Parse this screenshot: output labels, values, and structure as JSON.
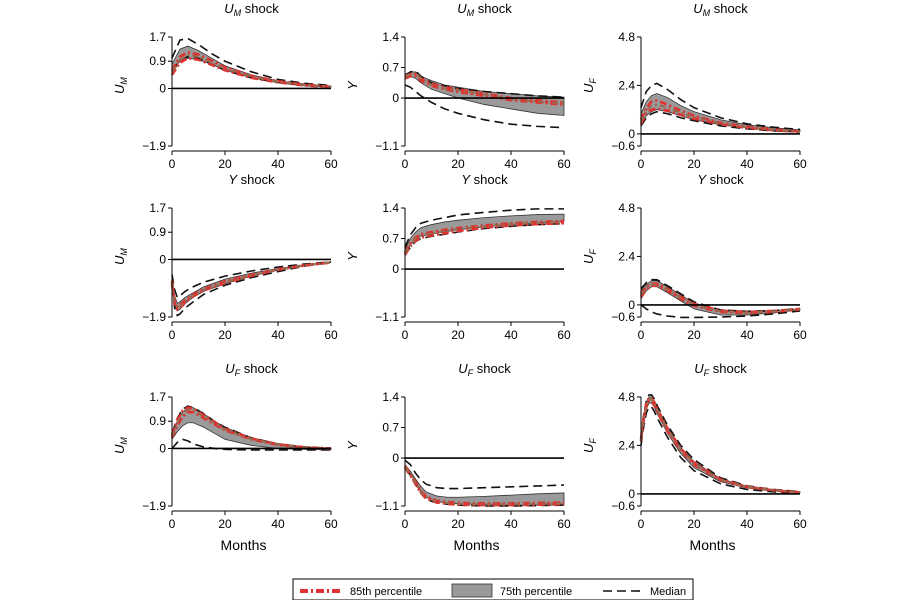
{
  "chart_data": {
    "type": "line",
    "xlabel": "Months",
    "x_ticks": [
      0,
      20,
      40,
      60
    ],
    "rows": [
      {
        "shock": "U_M",
        "title": "shock"
      },
      {
        "shock": "Y",
        "title": "shock"
      },
      {
        "shock": "U_F",
        "title": "shock"
      }
    ],
    "cols": [
      {
        "var": "U_M",
        "ylim": [
          -1.9,
          1.7
        ],
        "yticks": [
          "1.7",
          "0.9",
          "0",
          "−1.9"
        ],
        "ytick_vals": [
          1.7,
          0.9,
          0,
          -1.9
        ]
      },
      {
        "var": "Y",
        "ylim": [
          -1.1,
          1.4
        ],
        "yticks": [
          "1.4",
          "0.7",
          "0",
          "−1.1"
        ],
        "ytick_vals": [
          1.4,
          0.7,
          0,
          -1.1
        ]
      },
      {
        "var": "U_F",
        "ylim": [
          -0.6,
          4.8
        ],
        "yticks": [
          "4.8",
          "2.4",
          "0",
          "−0.6"
        ],
        "ytick_vals": [
          4.8,
          2.4,
          0,
          -0.6
        ]
      }
    ],
    "legend": {
      "items": [
        "85th percentile",
        "75th percentile",
        "Median"
      ],
      "placement": "bottom-center"
    },
    "series_note": "Each panel shows a shaded 75th-percentile band, red dashed 85th-percentile bounds, a grey dash-dot central line and black dashed median bounds.",
    "panels": [
      [
        {
          "x": [
            0,
            3,
            6,
            10,
            15,
            20,
            30,
            40,
            50,
            60
          ],
          "lo": [
            0.5,
            0.9,
            1.0,
            0.95,
            0.8,
            0.6,
            0.35,
            0.2,
            0.1,
            0.05
          ],
          "hi": [
            0.8,
            1.3,
            1.4,
            1.25,
            1.0,
            0.75,
            0.45,
            0.25,
            0.15,
            0.08
          ],
          "r_lo": [
            0.45,
            0.85,
            1.0,
            0.95,
            0.78,
            0.6,
            0.35,
            0.2,
            0.1,
            0.05
          ],
          "r_hi": [
            0.6,
            1.05,
            1.2,
            1.12,
            0.92,
            0.7,
            0.42,
            0.24,
            0.13,
            0.06
          ],
          "mid": [
            0.55,
            0.95,
            1.1,
            1.05,
            0.86,
            0.66,
            0.4,
            0.22,
            0.12,
            0.06
          ],
          "m_lo": [
            0.6,
            0.95,
            1.05,
            1.0,
            0.8,
            0.6,
            0.35,
            0.2,
            0.1,
            0.05
          ],
          "m_hi": [
            1.0,
            1.6,
            1.65,
            1.45,
            1.15,
            0.9,
            0.55,
            0.3,
            0.17,
            0.1
          ]
        },
        {
          "x": [
            0,
            2,
            4,
            6,
            10,
            15,
            20,
            30,
            40,
            50,
            60
          ],
          "lo": [
            0.45,
            0.5,
            0.45,
            0.35,
            0.2,
            0.1,
            0.0,
            -0.15,
            -0.25,
            -0.35,
            -0.4
          ],
          "hi": [
            0.55,
            0.6,
            0.6,
            0.5,
            0.4,
            0.3,
            0.25,
            0.15,
            0.1,
            0.05,
            0.02
          ],
          "r_lo": [
            0.45,
            0.5,
            0.5,
            0.4,
            0.28,
            0.2,
            0.14,
            0.05,
            -0.05,
            -0.1,
            -0.15
          ],
          "r_hi": [
            0.5,
            0.55,
            0.55,
            0.45,
            0.33,
            0.25,
            0.2,
            0.1,
            0.0,
            -0.05,
            -0.1
          ],
          "mid": [
            0.48,
            0.55,
            0.58,
            0.45,
            0.3,
            0.22,
            0.18,
            0.08,
            -0.02,
            -0.08,
            -0.12
          ],
          "m_lo": [
            0.3,
            0.25,
            0.15,
            0.05,
            -0.1,
            -0.25,
            -0.35,
            -0.5,
            -0.6,
            -0.65,
            -0.68
          ],
          "m_hi": [
            0.5,
            0.6,
            0.62,
            0.5,
            0.35,
            0.28,
            0.22,
            0.15,
            0.1,
            0.05,
            0.02
          ]
        },
        {
          "x": [
            0,
            2,
            4,
            6,
            10,
            15,
            20,
            30,
            40,
            50,
            60
          ],
          "lo": [
            0.5,
            0.9,
            1.1,
            1.2,
            1.1,
            0.9,
            0.7,
            0.45,
            0.3,
            0.2,
            0.12
          ],
          "hi": [
            1.0,
            1.6,
            1.9,
            2.0,
            1.8,
            1.4,
            1.1,
            0.7,
            0.45,
            0.3,
            0.2
          ],
          "r_lo": [
            0.5,
            1.0,
            1.2,
            1.25,
            1.15,
            0.95,
            0.75,
            0.48,
            0.3,
            0.18,
            0.1
          ],
          "r_hi": [
            0.7,
            1.3,
            1.6,
            1.65,
            1.45,
            1.15,
            0.9,
            0.55,
            0.35,
            0.22,
            0.12
          ],
          "mid": [
            0.6,
            1.15,
            1.4,
            1.45,
            1.3,
            1.05,
            0.85,
            0.52,
            0.33,
            0.2,
            0.11
          ],
          "m_lo": [
            0.4,
            0.8,
            1.0,
            1.1,
            1.0,
            0.8,
            0.65,
            0.4,
            0.25,
            0.15,
            0.1
          ],
          "m_hi": [
            1.3,
            2.1,
            2.4,
            2.5,
            2.2,
            1.7,
            1.3,
            0.8,
            0.5,
            0.33,
            0.22
          ]
        }
      ],
      [
        {
          "x": [
            0,
            1,
            2,
            3,
            5,
            8,
            12,
            20,
            30,
            40,
            50,
            60
          ],
          "lo": [
            -0.8,
            -1.5,
            -1.7,
            -1.65,
            -1.45,
            -1.25,
            -1.05,
            -0.8,
            -0.55,
            -0.35,
            -0.2,
            -0.1
          ],
          "hi": [
            -0.6,
            -1.2,
            -1.45,
            -1.4,
            -1.25,
            -1.1,
            -0.9,
            -0.65,
            -0.45,
            -0.3,
            -0.18,
            -0.1
          ],
          "r_lo": [
            -0.8,
            -1.45,
            -1.65,
            -1.6,
            -1.42,
            -1.22,
            -1.02,
            -0.78,
            -0.54,
            -0.34,
            -0.2,
            -0.1
          ],
          "r_hi": [
            -0.7,
            -1.35,
            -1.55,
            -1.5,
            -1.35,
            -1.15,
            -0.97,
            -0.72,
            -0.5,
            -0.32,
            -0.19,
            -0.1
          ],
          "mid": [
            -0.75,
            -1.4,
            -1.6,
            -1.55,
            -1.38,
            -1.18,
            -1.0,
            -0.75,
            -0.52,
            -0.33,
            -0.19,
            -0.1
          ],
          "m_lo": [
            -0.9,
            -1.6,
            -1.85,
            -1.8,
            -1.6,
            -1.4,
            -1.15,
            -0.85,
            -0.6,
            -0.4,
            -0.22,
            -0.1
          ],
          "m_hi": [
            -0.5,
            -1.0,
            -1.25,
            -1.2,
            -1.05,
            -0.9,
            -0.75,
            -0.55,
            -0.38,
            -0.25,
            -0.15,
            -0.08
          ]
        },
        {
          "x": [
            0,
            2,
            4,
            6,
            10,
            15,
            20,
            30,
            40,
            50,
            60
          ],
          "lo": [
            0.35,
            0.55,
            0.68,
            0.75,
            0.8,
            0.85,
            0.9,
            0.97,
            1.02,
            1.06,
            1.1
          ],
          "hi": [
            0.45,
            0.7,
            0.85,
            0.95,
            1.02,
            1.08,
            1.12,
            1.18,
            1.22,
            1.25,
            1.26
          ],
          "r_lo": [
            0.33,
            0.52,
            0.65,
            0.72,
            0.77,
            0.82,
            0.87,
            0.95,
            1.0,
            1.03,
            1.05
          ],
          "r_hi": [
            0.38,
            0.58,
            0.72,
            0.8,
            0.85,
            0.9,
            0.94,
            1.0,
            1.05,
            1.08,
            1.1
          ],
          "mid": [
            0.36,
            0.56,
            0.7,
            0.77,
            0.82,
            0.87,
            0.92,
            0.98,
            1.03,
            1.06,
            1.08
          ],
          "m_lo": [
            0.32,
            0.5,
            0.63,
            0.7,
            0.75,
            0.8,
            0.85,
            0.93,
            0.98,
            1.02,
            1.04
          ],
          "m_hi": [
            0.5,
            0.78,
            0.95,
            1.05,
            1.12,
            1.18,
            1.24,
            1.3,
            1.35,
            1.38,
            1.38
          ]
        },
        {
          "x": [
            0,
            2,
            4,
            6,
            10,
            15,
            20,
            30,
            40,
            50,
            60
          ],
          "lo": [
            0.3,
            0.7,
            0.9,
            0.9,
            0.6,
            0.2,
            -0.2,
            -0.5,
            -0.5,
            -0.4,
            -0.25
          ],
          "hi": [
            0.7,
            1.0,
            1.2,
            1.2,
            0.9,
            0.5,
            0.1,
            -0.3,
            -0.35,
            -0.3,
            -0.2
          ],
          "r_lo": [
            0.4,
            0.75,
            0.95,
            0.95,
            0.7,
            0.3,
            -0.05,
            -0.35,
            -0.4,
            -0.35,
            -0.22
          ],
          "r_hi": [
            0.55,
            0.9,
            1.05,
            1.05,
            0.8,
            0.4,
            0.05,
            -0.28,
            -0.35,
            -0.3,
            -0.2
          ],
          "mid": [
            0.5,
            0.85,
            1.0,
            1.0,
            0.75,
            0.35,
            0.0,
            -0.32,
            -0.38,
            -0.32,
            -0.21
          ],
          "m_lo": [
            0.0,
            -0.2,
            -0.35,
            -0.45,
            -0.55,
            -0.62,
            -0.62,
            -0.6,
            -0.55,
            -0.45,
            -0.3
          ],
          "m_hi": [
            0.8,
            1.1,
            1.25,
            1.25,
            0.95,
            0.55,
            0.15,
            -0.25,
            -0.32,
            -0.28,
            -0.18
          ]
        }
      ],
      [
        {
          "x": [
            0,
            2,
            4,
            6,
            8,
            12,
            16,
            20,
            30,
            40,
            50,
            60
          ],
          "lo": [
            0.3,
            0.55,
            0.75,
            0.85,
            0.85,
            0.7,
            0.5,
            0.3,
            0.1,
            0.0,
            -0.03,
            -0.05
          ],
          "hi": [
            0.5,
            0.9,
            1.2,
            1.35,
            1.35,
            1.15,
            0.9,
            0.7,
            0.35,
            0.15,
            0.05,
            0.0
          ],
          "r_lo": [
            0.35,
            0.75,
            1.05,
            1.2,
            1.2,
            1.0,
            0.8,
            0.6,
            0.3,
            0.12,
            0.03,
            0.0
          ],
          "r_hi": [
            0.45,
            0.95,
            1.25,
            1.35,
            1.32,
            1.1,
            0.88,
            0.65,
            0.33,
            0.14,
            0.04,
            0.0
          ],
          "mid": [
            0.4,
            0.85,
            1.15,
            1.28,
            1.27,
            1.05,
            0.84,
            0.62,
            0.31,
            0.13,
            0.03,
            0.0
          ],
          "m_lo": [
            0.0,
            0.2,
            0.3,
            0.25,
            0.15,
            0.05,
            0.0,
            -0.03,
            -0.05,
            -0.05,
            -0.05,
            -0.05
          ],
          "m_hi": [
            0.5,
            1.0,
            1.3,
            1.4,
            1.35,
            1.15,
            0.9,
            0.7,
            0.35,
            0.15,
            0.05,
            0.0
          ]
        },
        {
          "x": [
            0,
            2,
            4,
            6,
            8,
            12,
            16,
            20,
            30,
            40,
            50,
            60
          ],
          "lo": [
            -0.2,
            -0.35,
            -0.55,
            -0.75,
            -0.9,
            -1.0,
            -1.03,
            -1.05,
            -1.07,
            -1.08,
            -1.08,
            -1.08
          ],
          "hi": [
            -0.15,
            -0.3,
            -0.48,
            -0.65,
            -0.78,
            -0.87,
            -0.9,
            -0.9,
            -0.88,
            -0.85,
            -0.82,
            -0.8
          ],
          "r_lo": [
            -0.22,
            -0.4,
            -0.6,
            -0.8,
            -0.93,
            -1.02,
            -1.05,
            -1.07,
            -1.08,
            -1.08,
            -1.07,
            -1.06
          ],
          "r_hi": [
            -0.18,
            -0.35,
            -0.55,
            -0.75,
            -0.88,
            -0.98,
            -1.01,
            -1.03,
            -1.04,
            -1.04,
            -1.03,
            -1.02
          ],
          "mid": [
            -0.2,
            -0.38,
            -0.58,
            -0.78,
            -0.9,
            -1.0,
            -1.03,
            -1.05,
            -1.06,
            -1.06,
            -1.05,
            -1.04
          ],
          "m_lo": [
            -0.22,
            -0.4,
            -0.6,
            -0.8,
            -0.95,
            -1.03,
            -1.06,
            -1.08,
            -1.1,
            -1.1,
            -1.09,
            -1.08
          ],
          "m_hi": [
            -0.05,
            -0.15,
            -0.35,
            -0.5,
            -0.6,
            -0.68,
            -0.7,
            -0.7,
            -0.68,
            -0.66,
            -0.64,
            -0.62
          ]
        },
        {
          "x": [
            0,
            1,
            2,
            3,
            4,
            5,
            6,
            8,
            10,
            15,
            20,
            30,
            40,
            50,
            60
          ],
          "lo": [
            2.5,
            3.5,
            4.2,
            4.5,
            4.5,
            4.3,
            4.0,
            3.5,
            3.0,
            2.0,
            1.3,
            0.6,
            0.3,
            0.15,
            0.05
          ],
          "hi": [
            2.7,
            3.8,
            4.5,
            4.8,
            4.8,
            4.6,
            4.3,
            3.8,
            3.3,
            2.3,
            1.6,
            0.75,
            0.38,
            0.2,
            0.1
          ],
          "r_lo": [
            2.6,
            3.6,
            4.3,
            4.6,
            4.6,
            4.4,
            4.1,
            3.6,
            3.1,
            2.15,
            1.45,
            0.68,
            0.33,
            0.17,
            0.07
          ],
          "r_hi": [
            2.7,
            3.8,
            4.5,
            4.75,
            4.75,
            4.55,
            4.25,
            3.75,
            3.25,
            2.25,
            1.55,
            0.72,
            0.36,
            0.19,
            0.08
          ],
          "mid": [
            2.65,
            3.7,
            4.4,
            4.7,
            4.7,
            4.5,
            4.2,
            3.7,
            3.2,
            2.2,
            1.5,
            0.7,
            0.35,
            0.18,
            0.08
          ],
          "m_lo": [
            2.4,
            3.3,
            4.0,
            4.3,
            4.3,
            4.1,
            3.8,
            3.3,
            2.8,
            1.8,
            1.15,
            0.5,
            0.22,
            0.1,
            0.02
          ],
          "m_hi": [
            2.8,
            3.9,
            4.6,
            4.9,
            4.9,
            4.7,
            4.4,
            3.9,
            3.4,
            2.4,
            1.7,
            0.8,
            0.4,
            0.22,
            0.12
          ]
        }
      ]
    ]
  },
  "colors": {
    "band_fill": "#9a9a9a",
    "band_edge": "#333333",
    "red": "#e03030",
    "mid": "#9a6a50",
    "median": "#111111",
    "axis": "#000000"
  }
}
